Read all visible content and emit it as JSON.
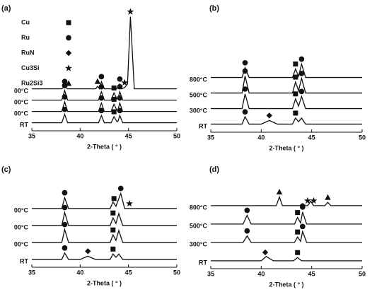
{
  "chart_data": [
    {
      "type": "line",
      "panel_label": "(a)",
      "x_label": "2-Theta ( ° )",
      "xlim": [
        35,
        50
      ],
      "xticks": [
        35,
        40,
        45,
        50
      ],
      "ylim": [
        0,
        100
      ],
      "color": "#111111",
      "legend": [
        {
          "name": "Cu",
          "symbol": "square"
        },
        {
          "name": "Ru",
          "symbol": "circle"
        },
        {
          "name": "RuN",
          "symbol": "diamond"
        },
        {
          "name": "Cu3Si",
          "symbol": "star"
        },
        {
          "name": "Ru2Si3",
          "symbol": "triangle"
        }
      ],
      "series": [
        {
          "name": "RT",
          "x": [
            35,
            38.1,
            38.4,
            38.7,
            41.9,
            42.2,
            42.5,
            43.2,
            43.5,
            43.8,
            43.9,
            44.1,
            44.4,
            50
          ],
          "values": [
            2,
            2,
            9,
            2,
            2,
            8,
            2,
            2,
            7,
            3,
            3,
            8,
            2,
            2
          ],
          "peaks": [
            {
              "x": 38.4,
              "phase": 1
            },
            {
              "x": 42.2,
              "phase": 1
            },
            {
              "x": 43.5,
              "phase": 0
            },
            {
              "x": 44.1,
              "phase": 1
            }
          ]
        },
        {
          "name": "00°C",
          "x": [
            35,
            38.1,
            38.4,
            38.7,
            41.9,
            42.2,
            42.5,
            43.2,
            43.5,
            43.8,
            43.9,
            44.1,
            44.4,
            50
          ],
          "values": [
            2,
            2,
            10,
            2,
            2,
            9,
            2,
            2,
            8,
            3,
            3,
            9,
            2,
            2
          ],
          "peaks": [
            {
              "x": 38.4,
              "phase": 1
            },
            {
              "x": 42.2,
              "phase": 1
            },
            {
              "x": 43.5,
              "phase": 0
            },
            {
              "x": 44.1,
              "phase": 1
            }
          ]
        },
        {
          "name": "00°C",
          "x": [
            35,
            38.1,
            38.4,
            38.7,
            41.9,
            42.2,
            42.5,
            43.2,
            43.5,
            43.8,
            43.9,
            44.1,
            44.4,
            50
          ],
          "values": [
            2,
            2,
            10,
            2,
            2,
            9,
            2,
            2,
            8,
            3,
            3,
            9,
            2,
            2
          ],
          "peaks": [
            {
              "x": 38.4,
              "phase": 1
            },
            {
              "x": 42.2,
              "phase": 1
            },
            {
              "x": 43.5,
              "phase": 0
            },
            {
              "x": 44.1,
              "phase": 1
            }
          ]
        },
        {
          "name": "00°C",
          "x": [
            35,
            38.1,
            38.4,
            38.7,
            41.6,
            41.8,
            42.0,
            42.2,
            42.5,
            43.8,
            44.1,
            44.3,
            44.6,
            44.9,
            45.2,
            45.6,
            50
          ],
          "values": [
            2,
            2,
            4,
            2,
            2,
            4,
            2,
            8,
            2,
            2,
            6,
            2,
            3,
            6,
            62,
            2,
            2
          ],
          "peaks": [
            {
              "x": 38.4,
              "phase": 1
            },
            {
              "x": 41.8,
              "phase": 4
            },
            {
              "x": 42.2,
              "phase": 1
            },
            {
              "x": 44.1,
              "phase": 1
            },
            {
              "x": 44.6,
              "phase": 3
            },
            {
              "x": 45.2,
              "phase": 3
            }
          ]
        }
      ]
    },
    {
      "type": "line",
      "panel_label": "(b)",
      "x_label": "2-Theta ( ° )",
      "xlim": [
        35,
        50
      ],
      "xticks": [
        35,
        40,
        45,
        50
      ],
      "ylim": [
        0,
        100
      ],
      "color": "#111111",
      "series": [
        {
          "name": "RT",
          "x": [
            35,
            38.1,
            38.4,
            38.8,
            40.0,
            40.8,
            41.6,
            43.1,
            43.4,
            43.7,
            44.0,
            44.4,
            50
          ],
          "values": [
            2,
            2,
            8,
            2,
            2,
            5,
            2,
            2,
            7,
            4,
            7,
            2,
            2
          ],
          "peaks": [
            {
              "x": 38.4,
              "phase": 1
            },
            {
              "x": 40.8,
              "phase": 2
            },
            {
              "x": 43.4,
              "phase": 0
            }
          ]
        },
        {
          "name": "300°C",
          "x": [
            35,
            38.1,
            38.4,
            38.8,
            43.1,
            43.4,
            43.7,
            44.0,
            44.4,
            50
          ],
          "values": [
            2,
            2,
            14,
            2,
            2,
            10,
            4,
            12,
            2,
            2
          ],
          "peaks": [
            {
              "x": 38.4,
              "phase": 1
            },
            {
              "x": 43.4,
              "phase": 0
            },
            {
              "x": 44.0,
              "phase": 1
            }
          ]
        },
        {
          "name": "500°C",
          "x": [
            35,
            38.1,
            38.4,
            38.8,
            43.1,
            43.4,
            43.7,
            44.0,
            44.4,
            50
          ],
          "values": [
            2,
            2,
            16,
            2,
            2,
            11,
            4,
            14,
            2,
            2
          ],
          "peaks": [
            {
              "x": 38.4,
              "phase": 1
            },
            {
              "x": 43.4,
              "phase": 0
            },
            {
              "x": 44.0,
              "phase": 1
            }
          ]
        },
        {
          "name": "800°C",
          "x": [
            35,
            38.1,
            38.4,
            38.8,
            43.1,
            43.4,
            43.7,
            44.0,
            44.4,
            50
          ],
          "values": [
            2,
            2,
            10,
            2,
            2,
            9,
            3,
            13,
            2,
            2
          ],
          "peaks": [
            {
              "x": 38.4,
              "phase": 1
            },
            {
              "x": 43.4,
              "phase": 0
            },
            {
              "x": 44.0,
              "phase": 1
            }
          ]
        }
      ]
    },
    {
      "type": "line",
      "panel_label": "(c)",
      "x_label": "2-Theta ( ° )",
      "xlim": [
        35,
        50
      ],
      "xticks": [
        35,
        40,
        45,
        50
      ],
      "ylim": [
        0,
        100
      ],
      "color": "#111111",
      "series": [
        {
          "name": "RT",
          "x": [
            35,
            38.1,
            38.4,
            38.8,
            40.0,
            40.8,
            41.6,
            43.1,
            43.4,
            43.7,
            44.0,
            44.4,
            50
          ],
          "values": [
            2,
            2,
            8,
            2,
            2,
            5,
            2,
            2,
            7,
            4,
            7,
            2,
            2
          ],
          "peaks": [
            {
              "x": 38.4,
              "phase": 1
            },
            {
              "x": 40.8,
              "phase": 2
            },
            {
              "x": 43.4,
              "phase": 0
            }
          ]
        },
        {
          "name": "00°C",
          "x": [
            35,
            38.1,
            38.4,
            38.8,
            43.1,
            43.4,
            43.7,
            44.0,
            44.4,
            50
          ],
          "values": [
            2,
            2,
            14,
            2,
            2,
            9,
            4,
            13,
            2,
            2
          ],
          "peaks": [
            {
              "x": 38.4,
              "phase": 1
            },
            {
              "x": 43.4,
              "phase": 0
            }
          ]
        },
        {
          "name": "00°C",
          "x": [
            35,
            38.1,
            38.4,
            38.8,
            43.1,
            43.4,
            43.7,
            44.0,
            44.4,
            50
          ],
          "values": [
            2,
            2,
            14,
            2,
            2,
            9,
            4,
            13,
            2,
            2
          ],
          "peaks": [
            {
              "x": 38.4,
              "phase": 1
            },
            {
              "x": 43.4,
              "phase": 0
            }
          ]
        },
        {
          "name": "00°C",
          "x": [
            35,
            38.1,
            38.4,
            38.8,
            43.1,
            43.4,
            43.7,
            44.2,
            44.6,
            50
          ],
          "values": [
            2,
            2,
            12,
            2,
            2,
            8,
            4,
            16,
            2,
            2
          ],
          "peaks": [
            {
              "x": 38.4,
              "phase": 1
            },
            {
              "x": 43.5,
              "phase": 0
            },
            {
              "x": 44.2,
              "phase": 1
            },
            {
              "x": 45.1,
              "phase": 3
            }
          ]
        }
      ]
    },
    {
      "type": "line",
      "panel_label": "(d)",
      "x_label": "2-Theta ( ° )",
      "xlim": [
        35,
        50
      ],
      "xticks": [
        35,
        40,
        45,
        50
      ],
      "ylim": [
        0,
        100
      ],
      "color": "#111111",
      "series": [
        {
          "name": "RT",
          "x": [
            35,
            40.0,
            40.5,
            41.2,
            43.2,
            43.6,
            44.0,
            50
          ],
          "values": [
            2,
            2,
            6,
            2,
            2,
            5,
            2,
            2
          ],
          "peaks": [
            {
              "x": 40.4,
              "phase": 2
            },
            {
              "x": 43.6,
              "phase": 0
            }
          ]
        },
        {
          "name": "300°C",
          "x": [
            35,
            38.2,
            38.6,
            39.0,
            43.3,
            43.6,
            43.9,
            44.1,
            44.5,
            50
          ],
          "values": [
            2,
            2,
            8,
            2,
            2,
            7,
            3,
            12,
            2,
            2
          ],
          "peaks": [
            {
              "x": 38.6,
              "phase": 1
            },
            {
              "x": 43.6,
              "phase": 0
            },
            {
              "x": 44.1,
              "phase": 1
            }
          ]
        },
        {
          "name": "500°C",
          "x": [
            35,
            38.2,
            38.6,
            39.0,
            43.3,
            43.6,
            43.9,
            44.1,
            44.5,
            50
          ],
          "values": [
            2,
            2,
            10,
            2,
            2,
            8,
            3,
            13,
            2,
            2
          ],
          "peaks": [
            {
              "x": 38.6,
              "phase": 1
            },
            {
              "x": 43.6,
              "phase": 0
            },
            {
              "x": 44.1,
              "phase": 1
            }
          ]
        },
        {
          "name": "800°C",
          "x": [
            35,
            41.5,
            41.8,
            42.1,
            43.8,
            44.1,
            44.4,
            44.6,
            44.9,
            45.2,
            45.5,
            46.3,
            46.6,
            46.9,
            50
          ],
          "values": [
            2,
            2,
            10,
            2,
            2,
            4,
            2,
            2,
            6,
            2,
            2,
            2,
            5,
            2,
            2
          ],
          "peaks": [
            {
              "x": 41.8,
              "phase": 4
            },
            {
              "x": 44.6,
              "phase": 3
            },
            {
              "x": 45.2,
              "phase": 3
            },
            {
              "x": 46.6,
              "phase": 4
            }
          ]
        }
      ]
    }
  ]
}
